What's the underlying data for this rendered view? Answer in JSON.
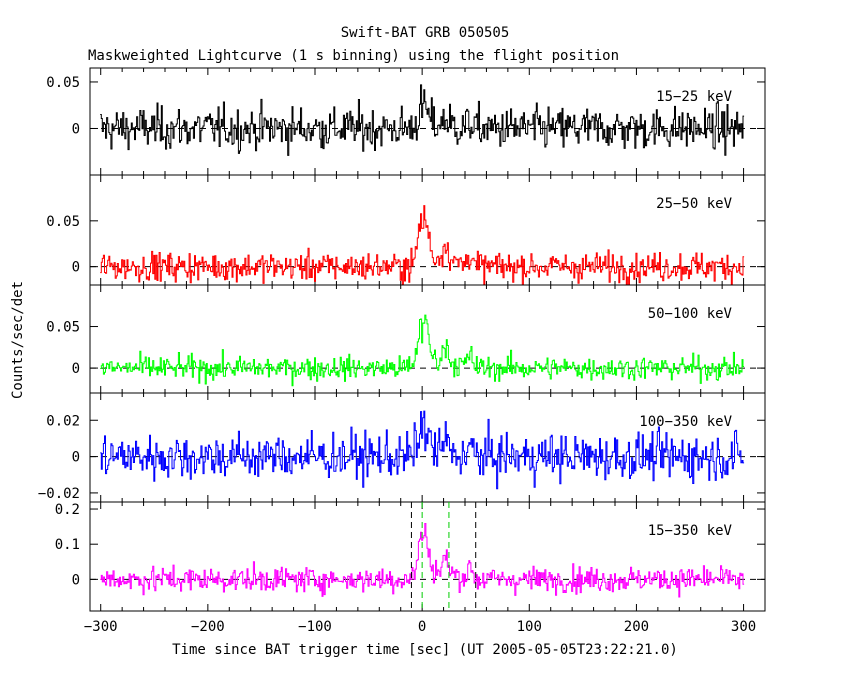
{
  "chart_data": {
    "type": "line",
    "title": "Swift-BAT GRB 050505",
    "subtitle": "Maskweighted Lightcurve (1 s binning) using the flight position",
    "xlabel": "Time since BAT trigger time [sec] (UT 2005-05-05T23:22:21.0)",
    "ylabel": "Counts/sec/det",
    "xlim": [
      -310,
      320
    ],
    "xticks": [
      -300,
      -200,
      -100,
      0,
      100,
      200,
      300
    ],
    "markers": {
      "black_dashed": [
        -10,
        50
      ],
      "green_dashed": [
        0,
        25
      ]
    },
    "panels": [
      {
        "label": "15-25 keV",
        "color": "#000000",
        "ylim": [
          -0.05,
          0.065
        ],
        "yticks": [
          {
            "v": 0.05,
            "t": "0.05"
          },
          {
            "v": 0,
            "t": "0"
          }
        ],
        "noise": 0.016,
        "burst_peak": 0.03
      },
      {
        "label": "25-50 keV",
        "color": "#ff0000",
        "ylim": [
          -0.02,
          0.1
        ],
        "yticks": [
          {
            "v": 0.05,
            "t": "0.05"
          },
          {
            "v": 0,
            "t": "0"
          }
        ],
        "noise": 0.011,
        "burst_peak": 0.07
      },
      {
        "label": "50-100 keV",
        "color": "#00ff00",
        "ylim": [
          -0.03,
          0.1
        ],
        "yticks": [
          {
            "v": 0.05,
            "t": "0.05"
          },
          {
            "v": 0,
            "t": "0"
          }
        ],
        "noise": 0.01,
        "burst_peak": 0.075
      },
      {
        "label": "100-350 keV",
        "color": "#0000ff",
        "ylim": [
          -0.025,
          0.035
        ],
        "yticks": [
          {
            "v": 0.02,
            "t": "0.02"
          },
          {
            "v": 0,
            "t": "0"
          },
          {
            "v": -0.02,
            "t": "−0.02"
          }
        ],
        "noise": 0.009,
        "burst_peak": 0.022
      },
      {
        "label": "15-350 keV",
        "color": "#ff00ff",
        "ylim": [
          -0.09,
          0.22
        ],
        "yticks": [
          {
            "v": 0.2,
            "t": "0.2"
          },
          {
            "v": 0.1,
            "t": "0.1"
          },
          {
            "v": 0,
            "t": "0"
          }
        ],
        "noise": 0.025,
        "burst_peak": 0.17
      }
    ]
  }
}
